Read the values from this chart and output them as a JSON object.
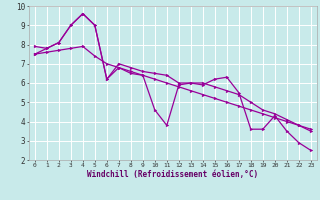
{
  "xlabel": "Windchill (Refroidissement éolien,°C)",
  "bg_color": "#c8eaea",
  "grid_color": "#ffffff",
  "line_color": "#990099",
  "ylim": [
    2,
    10
  ],
  "xlim": [
    -0.5,
    23.5
  ],
  "yticks": [
    2,
    3,
    4,
    5,
    6,
    7,
    8,
    9,
    10
  ],
  "xticks": [
    0,
    1,
    2,
    3,
    4,
    5,
    6,
    7,
    8,
    9,
    10,
    11,
    12,
    13,
    14,
    15,
    16,
    17,
    18,
    19,
    20,
    21,
    22,
    23
  ],
  "line1_x": [
    0,
    1,
    2,
    3,
    4,
    5,
    6,
    7,
    8,
    9,
    10,
    11,
    12,
    13,
    14,
    15,
    16,
    17,
    18,
    19,
    20,
    21,
    22,
    23
  ],
  "line1_y": [
    7.5,
    7.8,
    8.1,
    9.0,
    9.6,
    9.0,
    6.2,
    6.8,
    6.5,
    6.4,
    4.6,
    3.8,
    5.9,
    6.0,
    5.9,
    6.2,
    6.3,
    5.5,
    3.6,
    3.6,
    4.3,
    3.5,
    2.9,
    2.5
  ],
  "line2_x": [
    0,
    1,
    2,
    3,
    4,
    5,
    6,
    7,
    8,
    9,
    10,
    11,
    12,
    13,
    14,
    15,
    16,
    17,
    18,
    19,
    20,
    21,
    22,
    23
  ],
  "line2_y": [
    7.9,
    7.8,
    8.1,
    9.0,
    9.6,
    9.0,
    6.2,
    7.0,
    6.8,
    6.6,
    6.5,
    6.4,
    6.0,
    6.0,
    6.0,
    5.8,
    5.6,
    5.4,
    5.0,
    4.6,
    4.4,
    4.1,
    3.8,
    3.5
  ],
  "line3_x": [
    0,
    1,
    2,
    3,
    4,
    5,
    6,
    7,
    8,
    9,
    10,
    11,
    12,
    13,
    14,
    15,
    16,
    17,
    18,
    19,
    20,
    21,
    22,
    23
  ],
  "line3_y": [
    7.5,
    7.6,
    7.7,
    7.8,
    7.9,
    7.4,
    7.0,
    6.8,
    6.6,
    6.4,
    6.2,
    6.0,
    5.8,
    5.6,
    5.4,
    5.2,
    5.0,
    4.8,
    4.6,
    4.4,
    4.2,
    4.0,
    3.8,
    3.6
  ],
  "xlabel_color": "#660066",
  "xlabel_fontsize": 5.5,
  "tick_fontsize_x": 4.5,
  "tick_fontsize_y": 5.5,
  "lw": 0.9,
  "marker_size": 2.0
}
